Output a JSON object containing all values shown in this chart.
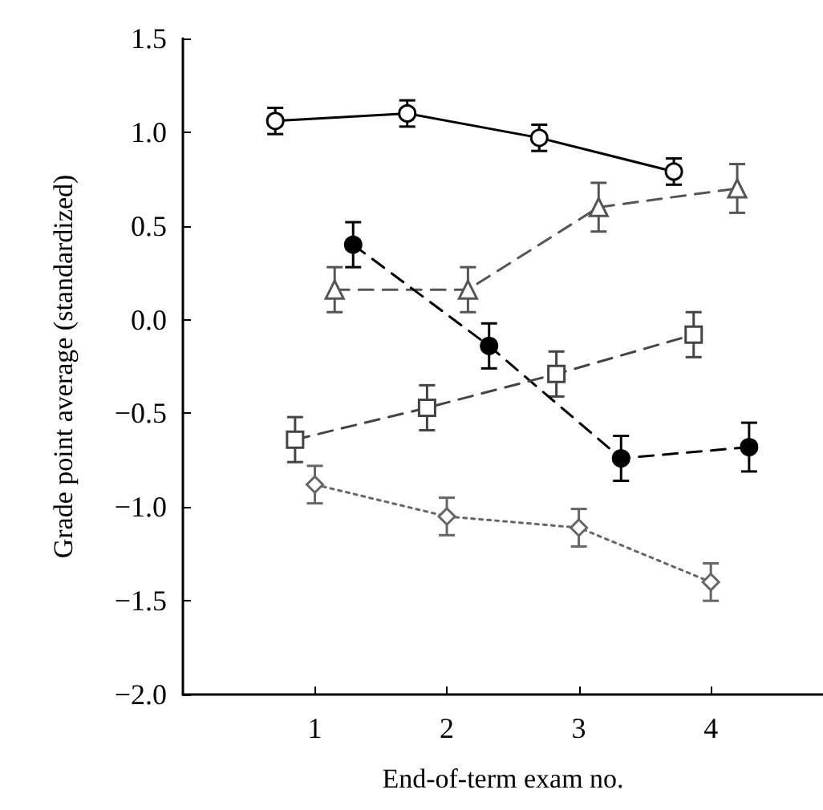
{
  "chart_data": {
    "type": "line",
    "xlabel": "End-of-term exam no.",
    "ylabel": "Grade point average (standardized)",
    "xlim": [
      0,
      4.85
    ],
    "xticks": [
      1,
      2,
      3,
      4
    ],
    "ylim": [
      -2,
      1.5
    ],
    "yticks": [
      {
        "value": -2,
        "label": "−2.0"
      },
      {
        "value": -1.5,
        "label": "−1.5"
      },
      {
        "value": -1,
        "label": "−1.0"
      },
      {
        "value": -0.5,
        "label": "−0.5"
      },
      {
        "value": 0,
        "label": "0.0"
      },
      {
        "value": 0.5,
        "label": "0.5"
      },
      {
        "value": 1,
        "label": "1.0"
      },
      {
        "value": 1.5,
        "label": "1.5"
      }
    ],
    "grid": false,
    "series": [
      {
        "color": "#000000",
        "marker": "circle",
        "line_style": "solid",
        "x": [
          0.7,
          1.7,
          2.7,
          3.72
        ],
        "values": [
          1.06,
          1.1,
          0.97,
          0.79
        ],
        "errors": [
          0.07,
          0.07,
          0.07,
          0.07
        ]
      },
      {
        "color": "#555555",
        "marker": "triangle",
        "line_style": "dashed",
        "x": [
          1.15,
          2.16,
          3.15,
          4.2
        ],
        "values": [
          0.16,
          0.16,
          0.6,
          0.7
        ],
        "errors": [
          0.12,
          0.12,
          0.13,
          0.13
        ]
      },
      {
        "color": "#000000",
        "marker": "circle",
        "colors": [
          "#000000",
          "#000000",
          "#000000",
          "#000000"
        ],
        "line_style": "dashed",
        "x": [
          1.29,
          2.32,
          3.32,
          4.29
        ],
        "values": [
          0.4,
          -0.14,
          -0.74,
          -0.68
        ],
        "errors": [
          0.12,
          0.12,
          0.12,
          0.13
        ]
      },
      {
        "color": "#444444",
        "marker": "square",
        "line_style": "dashed",
        "x": [
          0.85,
          1.85,
          2.83,
          3.87
        ],
        "values": [
          -0.64,
          -0.47,
          -0.29,
          -0.08
        ],
        "errors": [
          0.12,
          0.12,
          0.12,
          0.12
        ]
      },
      {
        "color": "#666666",
        "marker": "diamond",
        "line_style": "dotted",
        "x": [
          1.0,
          2.0,
          3.0,
          4.0
        ],
        "values": [
          -0.88,
          -1.05,
          -1.11,
          -1.4
        ],
        "errors": [
          0.1,
          0.1,
          0.1,
          0.1
        ]
      }
    ]
  }
}
